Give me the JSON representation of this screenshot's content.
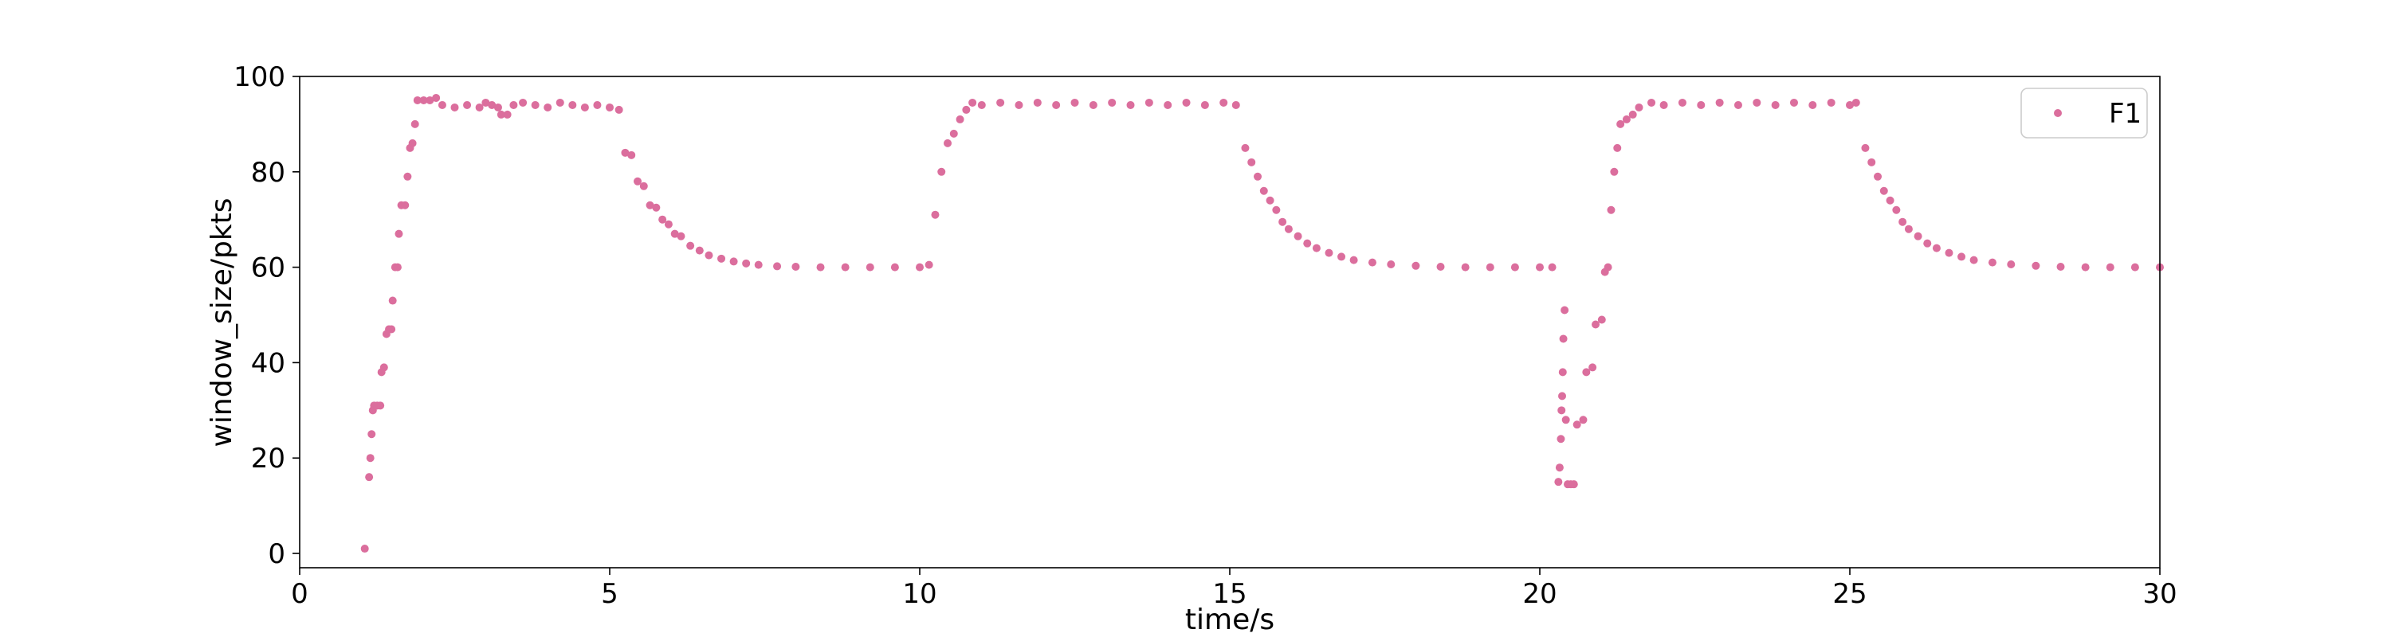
{
  "chart_data": {
    "type": "scatter",
    "xlabel": "time/s",
    "ylabel": "window_size/pkts",
    "xlim": [
      0,
      30
    ],
    "ylim": [
      -3,
      100
    ],
    "xticks": [
      0,
      5,
      10,
      15,
      20,
      25,
      30
    ],
    "yticks": [
      0,
      20,
      40,
      60,
      80,
      100
    ],
    "xtick_labels": [
      "0",
      "5",
      "10",
      "15",
      "20",
      "25",
      "30"
    ],
    "ytick_labels": [
      "0",
      "20",
      "40",
      "60",
      "80",
      "100"
    ],
    "grid": false,
    "legend": {
      "position": "top-right",
      "entries": [
        "F1"
      ]
    },
    "series": [
      {
        "name": "F1",
        "color": "#db6e9d",
        "points": [
          [
            1.05,
            1
          ],
          [
            1.12,
            16
          ],
          [
            1.14,
            20
          ],
          [
            1.16,
            25
          ],
          [
            1.18,
            30
          ],
          [
            1.2,
            31
          ],
          [
            1.25,
            31
          ],
          [
            1.3,
            31
          ],
          [
            1.32,
            38
          ],
          [
            1.36,
            39
          ],
          [
            1.4,
            46
          ],
          [
            1.44,
            47
          ],
          [
            1.48,
            47
          ],
          [
            1.5,
            53
          ],
          [
            1.54,
            60
          ],
          [
            1.58,
            60
          ],
          [
            1.6,
            67
          ],
          [
            1.64,
            73
          ],
          [
            1.7,
            73
          ],
          [
            1.74,
            79
          ],
          [
            1.78,
            85
          ],
          [
            1.82,
            86
          ],
          [
            1.86,
            90
          ],
          [
            1.9,
            95
          ],
          [
            2.0,
            95
          ],
          [
            2.1,
            95
          ],
          [
            2.2,
            95.5
          ],
          [
            2.3,
            94
          ],
          [
            2.5,
            93.5
          ],
          [
            2.7,
            94
          ],
          [
            2.9,
            93.5
          ],
          [
            3.0,
            94.5
          ],
          [
            3.1,
            94
          ],
          [
            3.2,
            93.5
          ],
          [
            3.25,
            92
          ],
          [
            3.35,
            92
          ],
          [
            3.45,
            94
          ],
          [
            3.6,
            94.5
          ],
          [
            3.8,
            94
          ],
          [
            4.0,
            93.5
          ],
          [
            4.2,
            94.5
          ],
          [
            4.4,
            94
          ],
          [
            4.6,
            93.5
          ],
          [
            4.8,
            94
          ],
          [
            5.0,
            93.5
          ],
          [
            5.15,
            93
          ],
          [
            5.25,
            84
          ],
          [
            5.35,
            83.5
          ],
          [
            5.45,
            78
          ],
          [
            5.55,
            77
          ],
          [
            5.65,
            73
          ],
          [
            5.75,
            72.5
          ],
          [
            5.85,
            70
          ],
          [
            5.95,
            69
          ],
          [
            6.05,
            67
          ],
          [
            6.15,
            66.5
          ],
          [
            6.3,
            64.5
          ],
          [
            6.45,
            63.5
          ],
          [
            6.6,
            62.5
          ],
          [
            6.8,
            61.8
          ],
          [
            7.0,
            61.2
          ],
          [
            7.2,
            60.8
          ],
          [
            7.4,
            60.5
          ],
          [
            7.7,
            60.2
          ],
          [
            8.0,
            60.1
          ],
          [
            8.4,
            60
          ],
          [
            8.8,
            60
          ],
          [
            9.2,
            60
          ],
          [
            9.6,
            60
          ],
          [
            10.0,
            60
          ],
          [
            10.15,
            60.5
          ],
          [
            10.25,
            71
          ],
          [
            10.35,
            80
          ],
          [
            10.45,
            86
          ],
          [
            10.55,
            88
          ],
          [
            10.65,
            91
          ],
          [
            10.75,
            93
          ],
          [
            10.85,
            94.5
          ],
          [
            11.0,
            94
          ],
          [
            11.3,
            94.5
          ],
          [
            11.6,
            94
          ],
          [
            11.9,
            94.5
          ],
          [
            12.2,
            94
          ],
          [
            12.5,
            94.5
          ],
          [
            12.8,
            94
          ],
          [
            13.1,
            94.5
          ],
          [
            13.4,
            94
          ],
          [
            13.7,
            94.5
          ],
          [
            14.0,
            94
          ],
          [
            14.3,
            94.5
          ],
          [
            14.6,
            94
          ],
          [
            14.9,
            94.5
          ],
          [
            15.1,
            94
          ],
          [
            15.25,
            85
          ],
          [
            15.35,
            82
          ],
          [
            15.45,
            79
          ],
          [
            15.55,
            76
          ],
          [
            15.65,
            74
          ],
          [
            15.75,
            72
          ],
          [
            15.85,
            69.5
          ],
          [
            15.95,
            68
          ],
          [
            16.1,
            66.5
          ],
          [
            16.25,
            65
          ],
          [
            16.4,
            64
          ],
          [
            16.6,
            63
          ],
          [
            16.8,
            62.2
          ],
          [
            17.0,
            61.5
          ],
          [
            17.3,
            61
          ],
          [
            17.6,
            60.6
          ],
          [
            18.0,
            60.3
          ],
          [
            18.4,
            60.1
          ],
          [
            18.8,
            60
          ],
          [
            19.2,
            60
          ],
          [
            19.6,
            60
          ],
          [
            20.0,
            60
          ],
          [
            20.2,
            60
          ],
          [
            20.3,
            15
          ],
          [
            20.32,
            18
          ],
          [
            20.34,
            24
          ],
          [
            20.35,
            30
          ],
          [
            20.36,
            33
          ],
          [
            20.37,
            38
          ],
          [
            20.38,
            45
          ],
          [
            20.4,
            51
          ],
          [
            20.42,
            28
          ],
          [
            20.45,
            14.5
          ],
          [
            20.5,
            14.5
          ],
          [
            20.55,
            14.5
          ],
          [
            20.6,
            27
          ],
          [
            20.7,
            28
          ],
          [
            20.75,
            38
          ],
          [
            20.85,
            39
          ],
          [
            20.9,
            48
          ],
          [
            21.0,
            49
          ],
          [
            21.05,
            59
          ],
          [
            21.1,
            60
          ],
          [
            21.15,
            72
          ],
          [
            21.2,
            80
          ],
          [
            21.25,
            85
          ],
          [
            21.3,
            90
          ],
          [
            21.4,
            91
          ],
          [
            21.5,
            92
          ],
          [
            21.6,
            93.5
          ],
          [
            21.8,
            94.5
          ],
          [
            22.0,
            94
          ],
          [
            22.3,
            94.5
          ],
          [
            22.6,
            94
          ],
          [
            22.9,
            94.5
          ],
          [
            23.2,
            94
          ],
          [
            23.5,
            94.5
          ],
          [
            23.8,
            94
          ],
          [
            24.1,
            94.5
          ],
          [
            24.4,
            94
          ],
          [
            24.7,
            94.5
          ],
          [
            25.0,
            94
          ],
          [
            25.1,
            94.5
          ],
          [
            25.25,
            85
          ],
          [
            25.35,
            82
          ],
          [
            25.45,
            79
          ],
          [
            25.55,
            76
          ],
          [
            25.65,
            74
          ],
          [
            25.75,
            72
          ],
          [
            25.85,
            69.5
          ],
          [
            25.95,
            68
          ],
          [
            26.1,
            66.5
          ],
          [
            26.25,
            65
          ],
          [
            26.4,
            64
          ],
          [
            26.6,
            63
          ],
          [
            26.8,
            62.2
          ],
          [
            27.0,
            61.5
          ],
          [
            27.3,
            61
          ],
          [
            27.6,
            60.6
          ],
          [
            28.0,
            60.3
          ],
          [
            28.4,
            60.1
          ],
          [
            28.8,
            60
          ],
          [
            29.2,
            60
          ],
          [
            29.6,
            60
          ],
          [
            30.0,
            60
          ]
        ]
      }
    ]
  }
}
